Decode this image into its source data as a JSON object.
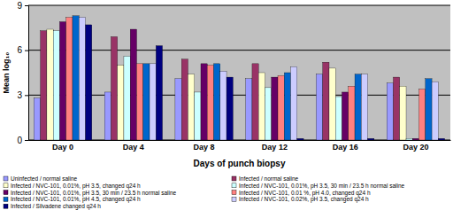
{
  "chart_data": {
    "type": "bar",
    "x_label": "Days of punch biopsy",
    "y_label": "Mean log₁₀",
    "categories": [
      "Day 0",
      "Day 4",
      "Day 8",
      "Day 12",
      "Day 16",
      "Day 20"
    ],
    "ylim": [
      0,
      9
    ],
    "yticks": [
      0,
      3,
      6,
      9
    ],
    "grid": true,
    "legend": "bottom",
    "series": [
      {
        "name": "Uninfected / normal saline",
        "color": "#9999ff",
        "values": [
          2.8,
          3.2,
          4.1,
          4.1,
          4.4,
          3.8
        ]
      },
      {
        "name": "Infected / normal saline",
        "color": "#993366",
        "values": [
          7.3,
          6.9,
          5.4,
          5.1,
          5.2,
          4.2
        ]
      },
      {
        "name": "Infected / NVC-101, 0.01%,  pH 3.5, changed q24 h",
        "color": "#ffffcc",
        "values": [
          7.4,
          5.0,
          4.4,
          4.5,
          4.8,
          3.6
        ]
      },
      {
        "name": "Infected / NVC-101, 0.01%, pH 3.5, 30 min / 23.5 h normal saline",
        "color": "#ccffff",
        "values": [
          7.3,
          5.6,
          3.2,
          3.5,
          2.9,
          0.1
        ]
      },
      {
        "name": "Infected / NVC-101, 0.01%, pH 3.5, 30 min / 23.5 h normal saline",
        "color": "#660066",
        "values": [
          7.9,
          7.4,
          5.1,
          4.2,
          3.2,
          0.1
        ]
      },
      {
        "name": "Infected / NVC-101, 0.01 %, pH 4.0, changed q24 h",
        "color": "#ff8080",
        "values": [
          8.2,
          5.1,
          5.0,
          4.3,
          3.6,
          3.4
        ]
      },
      {
        "name": "Infected / NVC-101, 0.01%,  pH 4.5, changed q24 h",
        "color": "#0066cc",
        "values": [
          8.3,
          5.1,
          5.1,
          4.5,
          4.4,
          4.1
        ]
      },
      {
        "name": "Infected / NVC-101, 0.02%, pH 3.5, changed q24 h",
        "color": "#ccccff",
        "values": [
          8.2,
          5.1,
          4.6,
          4.9,
          4.4,
          3.9
        ]
      },
      {
        "name": "Infected / Silvadene changed q24 h",
        "color": "#000080",
        "values": [
          7.7,
          6.3,
          4.2,
          0.1,
          0.1,
          0.1
        ]
      }
    ]
  }
}
